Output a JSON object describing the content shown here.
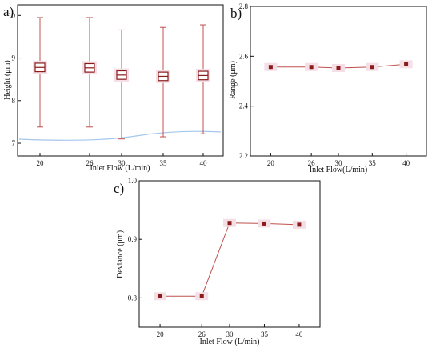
{
  "colors": {
    "series": "#8b1a1a",
    "line": "#c0504d",
    "highlight": "#f4dfe6",
    "axis": "#111111",
    "cyan_trace": "#8fb8e8"
  },
  "chart_data": [
    {
      "panel": "a)",
      "type": "box",
      "xlabel": "Inlet Flow (L/min)",
      "ylabel": "Height (μm)",
      "categories": [
        "20",
        "26",
        "30",
        "35",
        "40"
      ],
      "ylim": [
        6.7,
        10.25
      ],
      "yticks": [
        "7",
        "8",
        "9",
        "10"
      ],
      "boxes": [
        {
          "whisker_low": 7.38,
          "q1": 8.68,
          "median": 8.78,
          "q3": 8.88,
          "whisker_high": 9.95
        },
        {
          "whisker_low": 7.38,
          "q1": 8.67,
          "median": 8.77,
          "q3": 8.87,
          "whisker_high": 9.95
        },
        {
          "whisker_low": 7.1,
          "q1": 8.5,
          "median": 8.6,
          "q3": 8.7,
          "whisker_high": 9.66
        },
        {
          "whisker_low": 7.15,
          "q1": 8.47,
          "median": 8.57,
          "q3": 8.67,
          "whisker_high": 9.72
        },
        {
          "whisker_low": 7.22,
          "q1": 8.49,
          "median": 8.59,
          "q3": 8.69,
          "whisker_high": 9.78
        }
      ],
      "grid": false
    },
    {
      "panel": "b)",
      "type": "line",
      "xlabel": "Inlet Flow(L/min)",
      "ylabel": "Range (μm)",
      "x": [
        20,
        26,
        30,
        35,
        40
      ],
      "y": [
        2.557,
        2.557,
        2.553,
        2.557,
        2.568
      ],
      "xlim": [
        17,
        43
      ],
      "ylim": [
        2.2,
        2.8
      ],
      "xticks": [
        "20",
        "26",
        "30",
        "35",
        "40"
      ],
      "yticks": [
        "2.2",
        "2.4",
        "2.6",
        "2.8"
      ],
      "grid": false
    },
    {
      "panel": "c)",
      "type": "line",
      "xlabel": "Inlet Flow (L/min)",
      "ylabel": "Deviance (μm)",
      "x": [
        20,
        26,
        30,
        35,
        40
      ],
      "y": [
        0.803,
        0.803,
        0.928,
        0.927,
        0.925
      ],
      "xlim": [
        17,
        43
      ],
      "ylim": [
        0.75,
        1.0
      ],
      "xticks": [
        "20",
        "26",
        "30",
        "35",
        "40"
      ],
      "yticks": [
        "0.8",
        "0.9",
        "1.0"
      ],
      "grid": false
    }
  ]
}
